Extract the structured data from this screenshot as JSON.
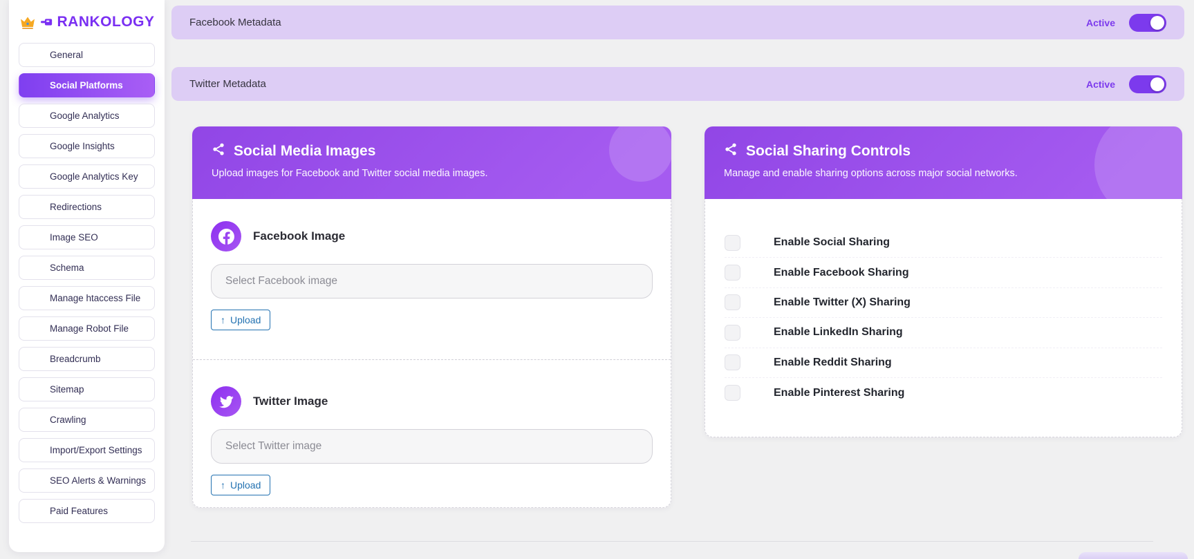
{
  "brand": {
    "name": "RANKOLOGY",
    "crown_icon": "crown-gold",
    "pointer_icon": "pointer-hand"
  },
  "sidebar": {
    "items": [
      {
        "key": "general",
        "label": "General",
        "icon": "sliders"
      },
      {
        "key": "social-platforms",
        "label": "Social Platforms",
        "icon": "share",
        "active": true
      },
      {
        "key": "google-analytics",
        "label": "Google Analytics",
        "icon": "chart-line"
      },
      {
        "key": "google-insights",
        "label": "Google Insights",
        "icon": "chart-bar"
      },
      {
        "key": "google-analytics-key",
        "label": "Google Analytics Key",
        "icon": "gear"
      },
      {
        "key": "redirections",
        "label": "Redirections",
        "icon": "arrows-swap"
      },
      {
        "key": "image-seo",
        "label": "Image SEO",
        "icon": "image"
      },
      {
        "key": "schema",
        "label": "Schema",
        "icon": "schema"
      },
      {
        "key": "manage-htaccess-file",
        "label": "Manage htaccess File",
        "icon": "file-config"
      },
      {
        "key": "manage-robot-file",
        "label": "Manage Robot File",
        "icon": "list-tree"
      },
      {
        "key": "breadcrumb",
        "label": "Breadcrumb",
        "icon": "sitemap"
      },
      {
        "key": "sitemap",
        "label": "Sitemap",
        "icon": "sitemap"
      },
      {
        "key": "crawling",
        "label": "Crawling",
        "icon": "spider"
      },
      {
        "key": "import-export-settings",
        "label": "Import/Export Settings",
        "icon": "arrows-swap"
      },
      {
        "key": "seo-alerts-warnings",
        "label": "SEO Alerts & Warnings",
        "icon": "warning"
      },
      {
        "key": "paid-features",
        "label": "Paid Features",
        "icon": "crown"
      }
    ]
  },
  "metadata_bars": [
    {
      "key": "facebook-metadata",
      "label": "Facebook Metadata",
      "status": "Active",
      "enabled": true
    },
    {
      "key": "twitter-metadata",
      "label": "Twitter Metadata",
      "status": "Active",
      "enabled": true
    }
  ],
  "cards": {
    "images": {
      "icon": "share",
      "title": "Social Media Images",
      "subtitle": "Upload images for Facebook and Twitter social media images.",
      "sections": [
        {
          "key": "facebook",
          "icon": "facebook",
          "title": "Facebook Image",
          "placeholder": "Select Facebook image",
          "value": "",
          "upload_icon": "arrow-up",
          "upload_label": "Upload"
        },
        {
          "key": "twitter",
          "icon": "twitter",
          "title": "Twitter Image",
          "placeholder": "Select Twitter image",
          "value": "",
          "upload_icon": "arrow-up",
          "upload_label": "Upload"
        }
      ]
    },
    "sharing": {
      "icon": "share",
      "title": "Social Sharing Controls",
      "subtitle": "Manage and enable sharing options across major social networks.",
      "options": [
        {
          "key": "social",
          "label": "Enable Social Sharing",
          "icon": "toggle-on",
          "checked": false
        },
        {
          "key": "facebook",
          "label": "Enable Facebook Sharing",
          "icon": "facebook",
          "checked": false
        },
        {
          "key": "twitter-x",
          "label": "Enable Twitter (X) Sharing",
          "icon": "x-logo",
          "checked": false
        },
        {
          "key": "linkedin",
          "label": "Enable LinkedIn Sharing",
          "icon": "linkedin",
          "checked": false
        },
        {
          "key": "reddit",
          "label": "Enable Reddit Sharing",
          "icon": "reddit",
          "checked": false
        },
        {
          "key": "pinterest",
          "label": "Enable Pinterest Sharing",
          "icon": "pinterest",
          "checked": false
        }
      ]
    }
  },
  "colors": {
    "accent": "#7c3aed",
    "active_item_gradient": [
      "#7f3ff0",
      "#a95ef5"
    ],
    "card_header_gradient": [
      "#9146e6",
      "#a55bf0"
    ],
    "metadata_bar_bg": "#ddcdf5",
    "upload_button_blue": "#2271b1",
    "page_bg": "#f0f0f1"
  }
}
